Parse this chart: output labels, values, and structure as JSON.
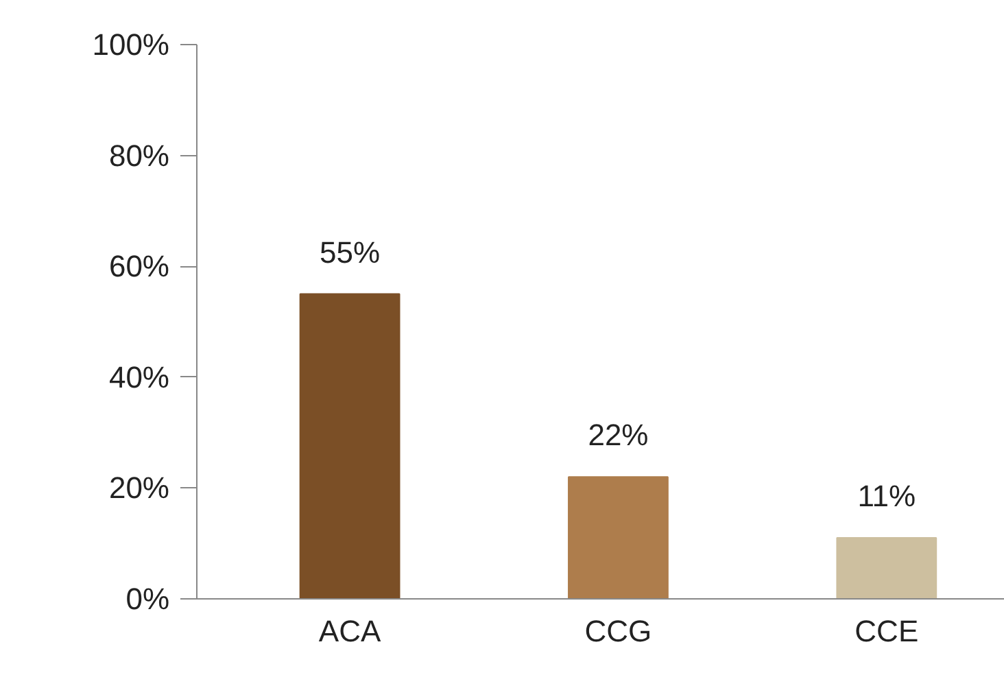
{
  "chart_data": {
    "type": "bar",
    "categories": [
      "ACA",
      "CCG",
      "CCE"
    ],
    "values": [
      55,
      22,
      11
    ],
    "colors": [
      "#7b4f26",
      "#ae7d4c",
      "#cdbf9f"
    ],
    "value_labels": [
      "55%",
      "22%",
      "11%"
    ],
    "ylim": [
      0,
      100
    ],
    "yticks": [
      {
        "value": 0,
        "label": "0%"
      },
      {
        "value": 20,
        "label": "20%"
      },
      {
        "value": 40,
        "label": "40%"
      },
      {
        "value": 60,
        "label": "60%"
      },
      {
        "value": 80,
        "label": "80%"
      },
      {
        "value": 100,
        "label": "100%"
      }
    ],
    "grid": false
  }
}
